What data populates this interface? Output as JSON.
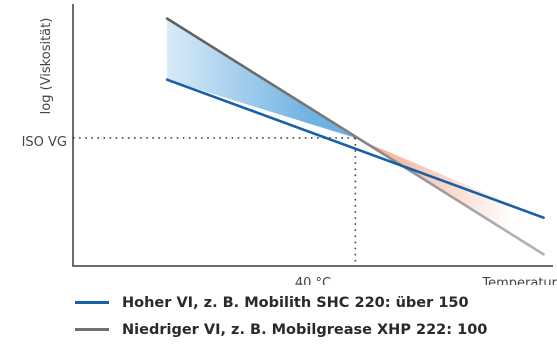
{
  "chart_data": {
    "type": "line",
    "xlabel": "Temperatur",
    "ylabel": "log (Viskosität)",
    "x_ticks": [
      "40 °C"
    ],
    "y_ticks": [
      "ISO VG"
    ],
    "x": [
      0,
      1,
      2
    ],
    "series": [
      {
        "name": "Hoher VI, z. B. Mobilith SHC 220: über 150",
        "values": [
          2.0,
          1.0,
          -0.37
        ],
        "color": "#1560a8"
      },
      {
        "name": "Niedriger VI, z. B. Mobilgrease XHP 222: 100",
        "values": [
          3.05,
          1.0,
          -1.0
        ],
        "color": "#707070"
      }
    ],
    "reference": {
      "x": 1,
      "y": 1
    },
    "xlim": [
      -0.5,
      2.05
    ],
    "ylim": [
      -1.2,
      3.3
    ],
    "fill_colors": {
      "cold": "#5ea9df",
      "warm": "#ef8560"
    },
    "grid": false,
    "legend_position": "bottom"
  }
}
